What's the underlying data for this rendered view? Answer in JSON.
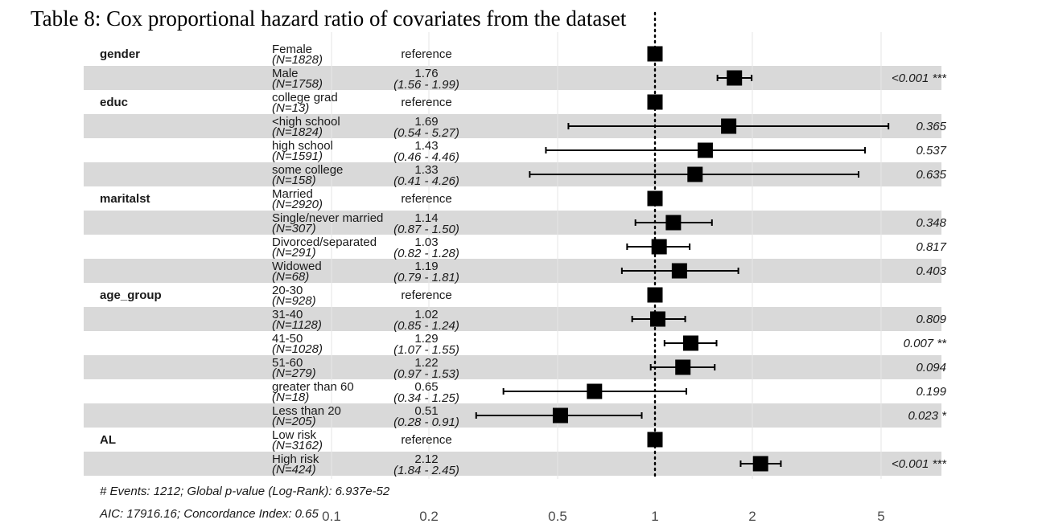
{
  "title": "Table 8: Cox proportional hazard ratio of covariates from the dataset",
  "chart_data": {
    "type": "forest",
    "x_scale": "log",
    "xlim": [
      0.1,
      7
    ],
    "x_ticks": [
      "0.1",
      "0.2",
      "0.5",
      "1",
      "2",
      "5"
    ],
    "reference_line": 1,
    "grid": true,
    "rows": [
      {
        "var": "gender",
        "level": "Female",
        "n": "(N=1828)",
        "hr_text": "reference",
        "ci_text": "",
        "hr": 1,
        "lo": null,
        "hi": null,
        "p": ""
      },
      {
        "var": "",
        "level": "Male",
        "n": "(N=1758)",
        "hr_text": "1.76",
        "ci_text": "(1.56 - 1.99)",
        "hr": 1.76,
        "lo": 1.56,
        "hi": 1.99,
        "p": "<0.001 ***"
      },
      {
        "var": "educ",
        "level": "college grad",
        "n": "(N=13)",
        "hr_text": "reference",
        "ci_text": "",
        "hr": 1,
        "lo": null,
        "hi": null,
        "p": ""
      },
      {
        "var": "",
        "level": "<high school",
        "n": "(N=1824)",
        "hr_text": "1.69",
        "ci_text": "(0.54 - 5.27)",
        "hr": 1.69,
        "lo": 0.54,
        "hi": 5.27,
        "p": "0.365"
      },
      {
        "var": "",
        "level": "high school",
        "n": "(N=1591)",
        "hr_text": "1.43",
        "ci_text": "(0.46 - 4.46)",
        "hr": 1.43,
        "lo": 0.46,
        "hi": 4.46,
        "p": "0.537"
      },
      {
        "var": "",
        "level": "some college",
        "n": "(N=158)",
        "hr_text": "1.33",
        "ci_text": "(0.41 - 4.26)",
        "hr": 1.33,
        "lo": 0.41,
        "hi": 4.26,
        "p": "0.635"
      },
      {
        "var": "maritalst",
        "level": "Married",
        "n": "(N=2920)",
        "hr_text": "reference",
        "ci_text": "",
        "hr": 1,
        "lo": null,
        "hi": null,
        "p": ""
      },
      {
        "var": "",
        "level": "Single/never married",
        "n": "(N=307)",
        "hr_text": "1.14",
        "ci_text": "(0.87 - 1.50)",
        "hr": 1.14,
        "lo": 0.87,
        "hi": 1.5,
        "p": "0.348"
      },
      {
        "var": "",
        "level": "Divorced/separated",
        "n": "(N=291)",
        "hr_text": "1.03",
        "ci_text": "(0.82 - 1.28)",
        "hr": 1.03,
        "lo": 0.82,
        "hi": 1.28,
        "p": "0.817"
      },
      {
        "var": "",
        "level": "Widowed",
        "n": "(N=68)",
        "hr_text": "1.19",
        "ci_text": "(0.79 - 1.81)",
        "hr": 1.19,
        "lo": 0.79,
        "hi": 1.81,
        "p": "0.403"
      },
      {
        "var": "age_group",
        "level": "20-30",
        "n": "(N=928)",
        "hr_text": "reference",
        "ci_text": "",
        "hr": 1,
        "lo": null,
        "hi": null,
        "p": ""
      },
      {
        "var": "",
        "level": "31-40",
        "n": "(N=1128)",
        "hr_text": "1.02",
        "ci_text": "(0.85 - 1.24)",
        "hr": 1.02,
        "lo": 0.85,
        "hi": 1.24,
        "p": "0.809"
      },
      {
        "var": "",
        "level": "41-50",
        "n": "(N=1028)",
        "hr_text": "1.29",
        "ci_text": "(1.07 - 1.55)",
        "hr": 1.29,
        "lo": 1.07,
        "hi": 1.55,
        "p": "0.007 **"
      },
      {
        "var": "",
        "level": "51-60",
        "n": "(N=279)",
        "hr_text": "1.22",
        "ci_text": "(0.97 - 1.53)",
        "hr": 1.22,
        "lo": 0.97,
        "hi": 1.53,
        "p": "0.094"
      },
      {
        "var": "",
        "level": "greater than 60",
        "n": "(N=18)",
        "hr_text": "0.65",
        "ci_text": "(0.34 - 1.25)",
        "hr": 0.65,
        "lo": 0.34,
        "hi": 1.25,
        "p": "0.199"
      },
      {
        "var": "",
        "level": "Less than 20",
        "n": "(N=205)",
        "hr_text": "0.51",
        "ci_text": "(0.28 - 0.91)",
        "hr": 0.51,
        "lo": 0.28,
        "hi": 0.91,
        "p": "0.023 *"
      },
      {
        "var": "AL",
        "level": "Low risk",
        "n": "(N=3162)",
        "hr_text": "reference",
        "ci_text": "",
        "hr": 1,
        "lo": null,
        "hi": null,
        "p": ""
      },
      {
        "var": "",
        "level": "High risk",
        "n": "(N=424)",
        "hr_text": "2.12",
        "ci_text": "(1.84 - 2.45)",
        "hr": 2.12,
        "lo": 1.84,
        "hi": 2.45,
        "p": "<0.001 ***"
      }
    ],
    "footnote1": "# Events: 1212; Global p-value (Log-Rank): 6.937e-52",
    "footnote2": "AIC: 17916.16; Concordance Index: 0.65"
  }
}
